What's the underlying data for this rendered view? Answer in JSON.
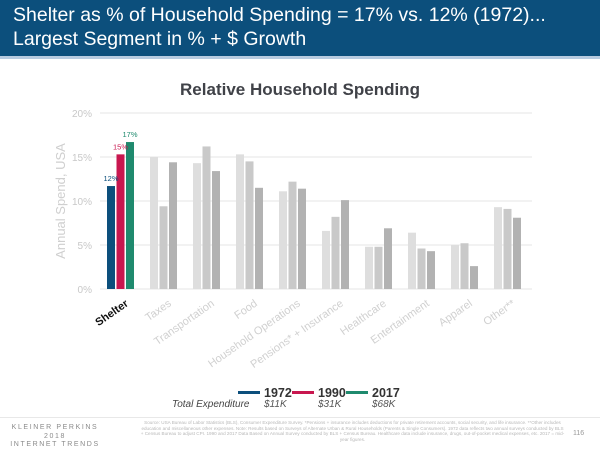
{
  "header": {
    "title_line1": "Shelter as % of Household Spending = 17% vs. 12% (1972)...",
    "title_line2": "Largest Segment in % + $ Growth"
  },
  "chart_data": {
    "type": "bar",
    "title": "Relative Household Spending",
    "xlabel": "",
    "ylabel": "Annual Spend, USA",
    "ylim": [
      0,
      20
    ],
    "yticks": [
      0,
      5,
      10,
      15,
      20
    ],
    "ytick_labels": [
      "0%",
      "5%",
      "10%",
      "15%",
      "20%"
    ],
    "grid": true,
    "legend_position": "bottom-center",
    "categories": [
      "Shelter",
      "Taxes",
      "Transportation",
      "Food",
      "Household Operations",
      "Pensions* + Insurance",
      "Healthcare",
      "Entertainment",
      "Apparel",
      "Other**"
    ],
    "highlight_category": "Shelter",
    "series": [
      {
        "name": "1972",
        "total_expenditure": "$11K",
        "color": "#0c4f7c",
        "muted_color": "#dedede",
        "values": [
          11.7,
          15.0,
          14.3,
          15.3,
          11.1,
          6.6,
          4.8,
          6.4,
          5.0,
          9.3
        ]
      },
      {
        "name": "1990",
        "total_expenditure": "$31K",
        "color": "#c8174f",
        "muted_color": "#c9c9c9",
        "values": [
          15.3,
          9.4,
          16.2,
          14.5,
          12.2,
          8.2,
          4.8,
          4.6,
          5.2,
          9.1
        ]
      },
      {
        "name": "2017",
        "total_expenditure": "$68K",
        "color": "#1f8a6e",
        "muted_color": "#b2b2b2",
        "values": [
          16.7,
          14.4,
          13.4,
          11.5,
          11.4,
          10.1,
          6.9,
          4.3,
          2.6,
          8.1
        ]
      }
    ],
    "data_labels": [
      {
        "category": "Shelter",
        "series": "1972",
        "text": "12%"
      },
      {
        "category": "Shelter",
        "series": "1990",
        "text": "15%"
      },
      {
        "category": "Shelter",
        "series": "2017",
        "text": "17%"
      }
    ],
    "total_expenditure_label": "Total Expenditure"
  },
  "footer": {
    "brand_line1": "KLEINER PERKINS",
    "brand_line2": "2018",
    "brand_line3": "INTERNET TRENDS",
    "source": "Source: USA Bureau of Labor Statistics (BLS), Consumer Expenditure Survey. *Pensions + insurance includes deductions for private retirement accounts, social security, and life insurance. **Other includes education and miscellaneous other expenses. Note: Results based on Surveys of Alternate Urban & Rural Households (Parents & Single Consumers). 1972 data reflects two annual surveys conducted by BLS + Census Bureau to adjust CPI. 1990 and 2017 Data Based on Annual Survey conducted by BLS + Census Bureau. Healthcare data include insurance, drugs, out-of-pocket medical expenses, etc. 2017 = mid-year figures.",
    "page_number": "116"
  }
}
